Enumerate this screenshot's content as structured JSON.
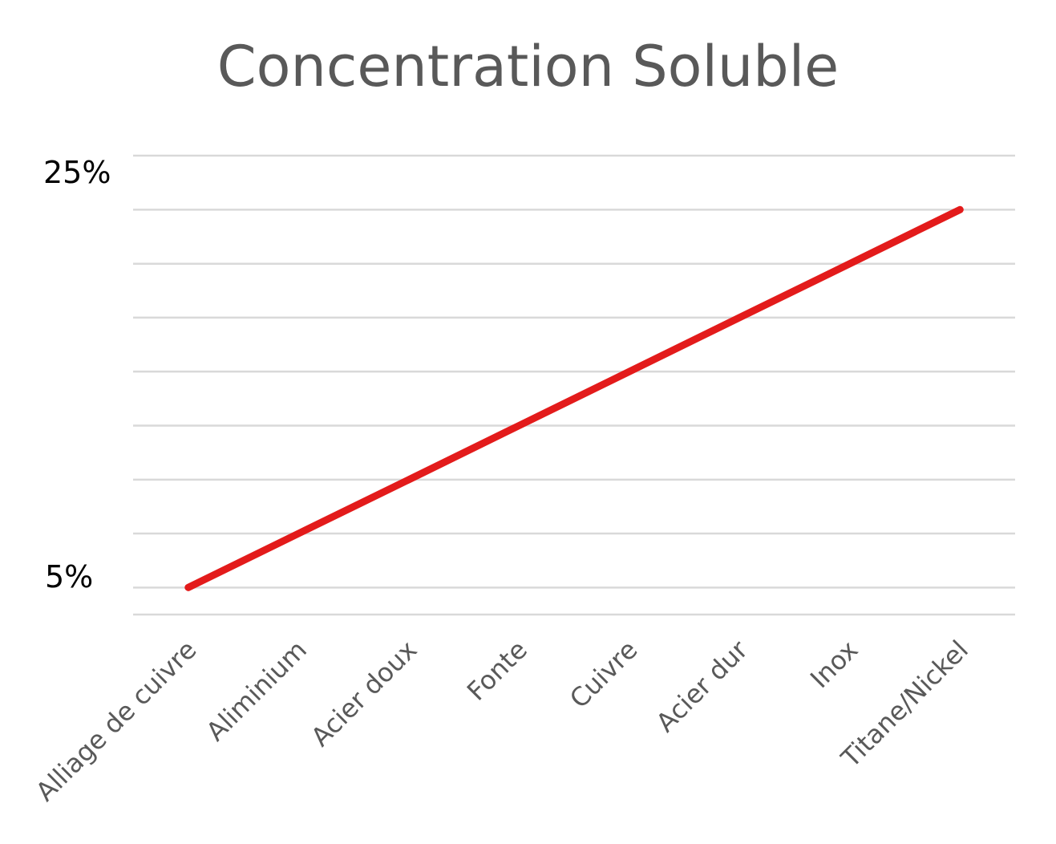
{
  "chart_data": {
    "type": "line",
    "title": "Concentration Soluble",
    "categories": [
      "Alliage de cuivre",
      "Aliminium",
      "Acier doux",
      "Fonte",
      "Cuivre",
      "Acier dur",
      "Inox",
      "Titane/Nickel"
    ],
    "series": [
      {
        "color": "#e31b1b",
        "values": [
          5,
          7.86,
          10.71,
          13.57,
          16.43,
          19.29,
          22.14,
          25
        ]
      }
    ],
    "y_tick_labels": {
      "top": "25%",
      "bottom": "5%"
    },
    "ylim": [
      3.57,
      27.86
    ],
    "grid": true,
    "gridline_values": [
      3.57,
      5,
      7.86,
      10.71,
      13.57,
      16.43,
      19.29,
      22.14,
      25,
      27.86
    ],
    "xlabel": "",
    "ylabel": ""
  }
}
